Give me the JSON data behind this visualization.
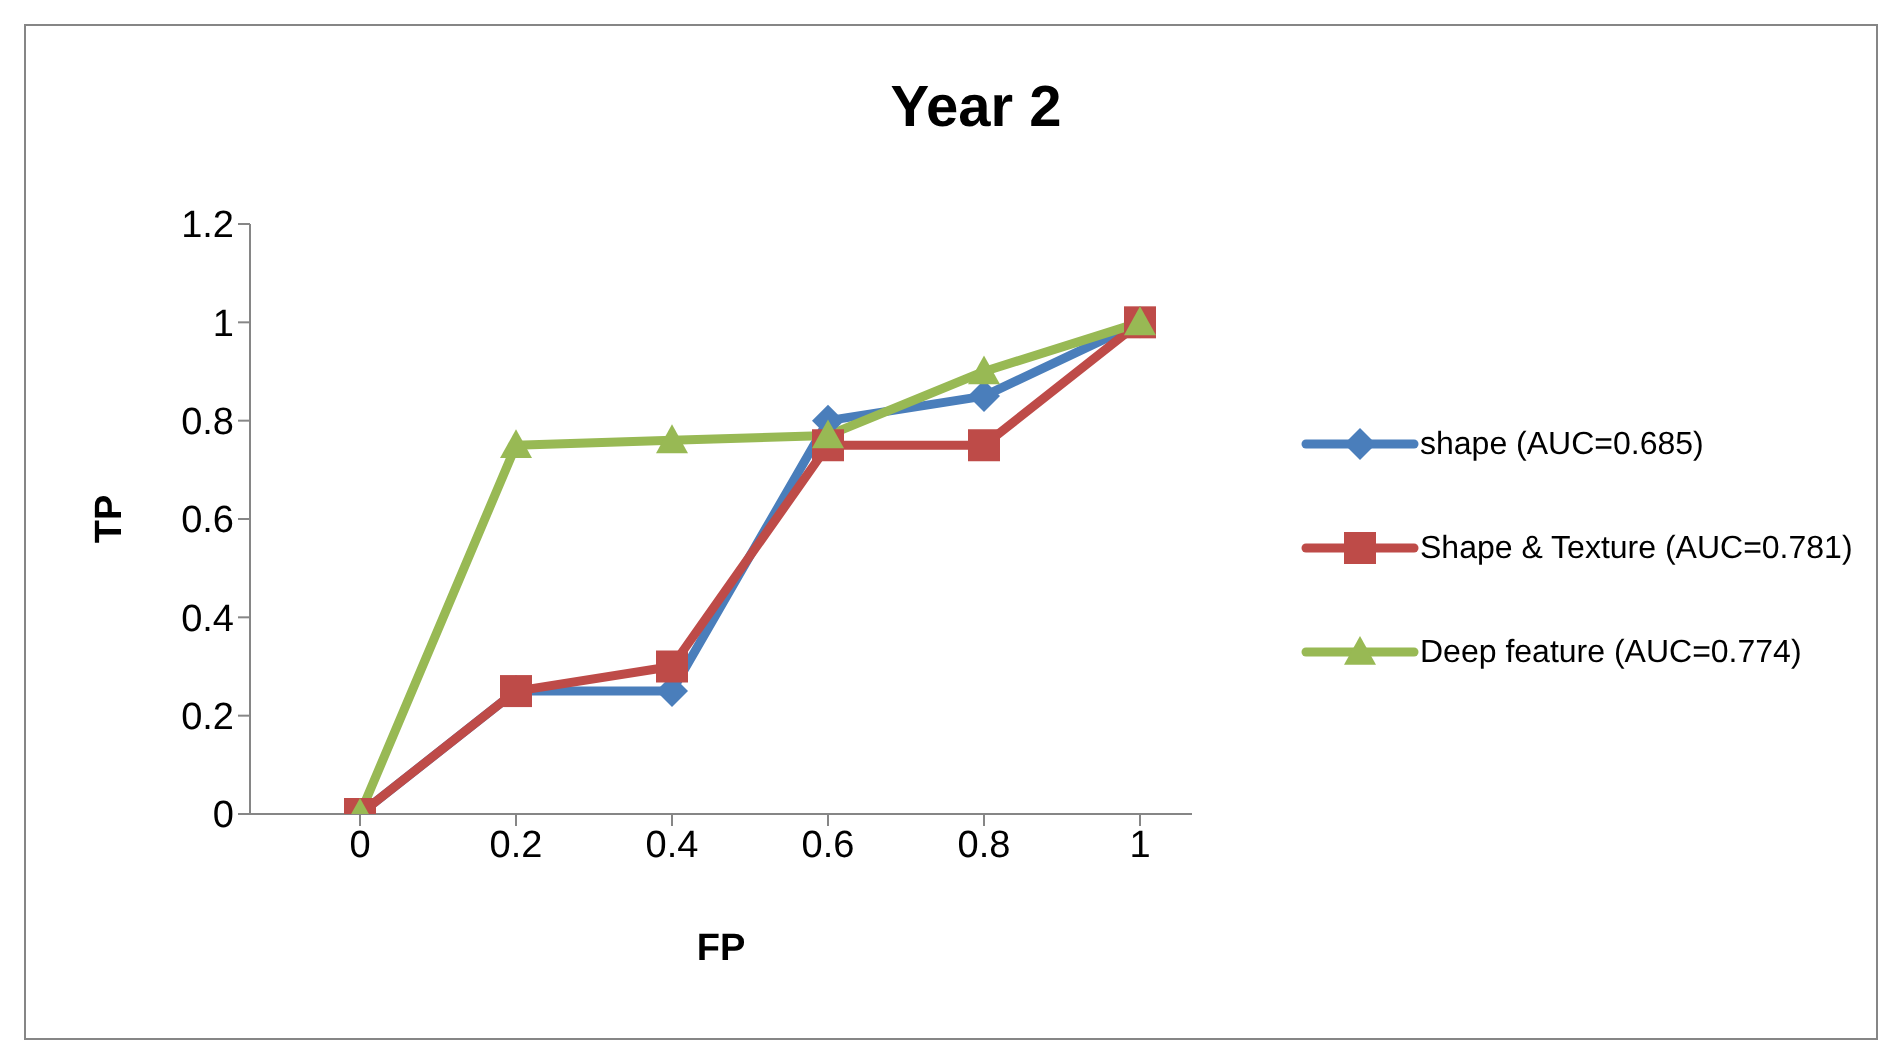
{
  "chart_data": {
    "type": "line",
    "title": "Year 2",
    "xlabel": "FP",
    "ylabel": "TP",
    "categories": [
      "0",
      "0.2",
      "0.4",
      "0.6",
      "0.8",
      "1"
    ],
    "series": [
      {
        "name": "shape (AUC=0.685)",
        "color": "#4a7ebb",
        "marker": "diamond",
        "values": [
          0,
          0.25,
          0.25,
          0.8,
          0.85,
          1
        ]
      },
      {
        "name": "Shape & Texture (AUC=0.781)",
        "color": "#be4b48",
        "marker": "square",
        "values": [
          0,
          0.25,
          0.3,
          0.75,
          0.75,
          1
        ]
      },
      {
        "name": "Deep feature (AUC=0.774)",
        "color": "#98b954",
        "marker": "triangle",
        "values": [
          0,
          0.75,
          0.76,
          0.77,
          0.9,
          1
        ]
      }
    ],
    "ylim": [
      0,
      1.2
    ],
    "yticks": [
      0,
      0.2,
      0.4,
      0.6,
      0.8,
      1,
      1.2
    ],
    "grid": false,
    "legend": "right",
    "line_style": "solid"
  }
}
